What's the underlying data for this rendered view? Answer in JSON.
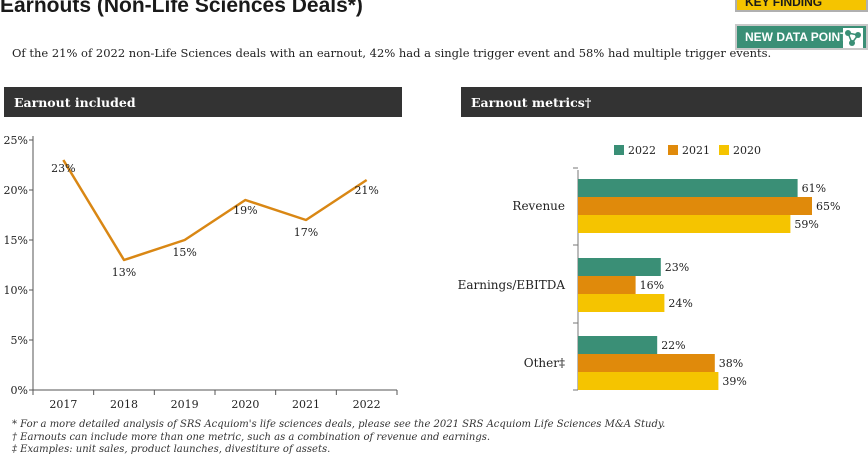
{
  "header": {
    "title": "Earnouts (Non-Life Sciences Deals*)",
    "subtitle": "Of the 21% of 2022 non-Life Sciences deals with an earnout, 42% had a single trigger event and 58% had multiple trigger events.",
    "badge_key_label": "KEY FINDING",
    "badge_new_label": "NEW DATA POINT",
    "badge_key_color": "#f5c400",
    "badge_new_color": "#3a8f76"
  },
  "panels": {
    "left_title": "Earnout included",
    "right_title": "Earnout metrics†"
  },
  "chart_data": [
    {
      "type": "line",
      "title": "Earnout included",
      "x": [
        "2017",
        "2018",
        "2019",
        "2020",
        "2021",
        "2022"
      ],
      "series": [
        {
          "values": [
            23,
            13,
            15,
            19,
            17,
            21
          ],
          "labels": [
            "23%",
            "13%",
            "15%",
            "19%",
            "17%",
            "21%"
          ],
          "color": "#d98714"
        }
      ],
      "y_ticks": [
        "0%",
        "5%",
        "10%",
        "15%",
        "20%",
        "25%"
      ],
      "ylim": [
        0,
        25
      ],
      "grid": false
    },
    {
      "type": "bar",
      "orientation": "horizontal",
      "title": "Earnout metrics†",
      "categories": [
        "Revenue",
        "Earnings/EBITDA",
        "Other‡"
      ],
      "series": [
        {
          "name": "2022",
          "color": "#3a8f76",
          "values": [
            61,
            23,
            22
          ],
          "labels": [
            "61%",
            "23%",
            "22%"
          ]
        },
        {
          "name": "2021",
          "color": "#e08a0b",
          "values": [
            65,
            16,
            38
          ],
          "labels": [
            "65%",
            "16%",
            "38%"
          ]
        },
        {
          "name": "2020",
          "color": "#f5c400",
          "values": [
            59,
            24,
            39
          ],
          "labels": [
            "59%",
            "24%",
            "39%"
          ]
        }
      ],
      "legend": "top",
      "grid": false
    }
  ],
  "footnotes": [
    "* For a more detailed analysis of SRS Acquiom's life sciences deals, please see the 2021 SRS Acquiom Life Sciences M&A Study.",
    "† Earnouts can include more than one metric, such as a combination of revenue and earnings.",
    "‡ Examples: unit sales, product launches, divestiture of assets."
  ]
}
